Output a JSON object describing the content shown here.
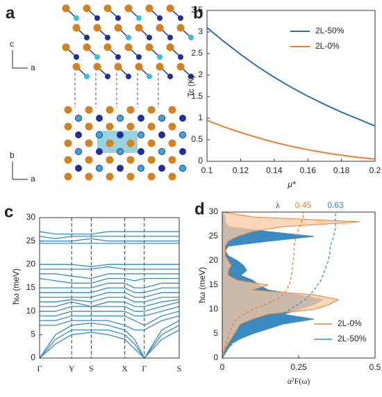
{
  "structure": {
    "panel_label": "a",
    "top_axes": [
      "c",
      "a"
    ],
    "bottom_axes": [
      "b",
      "a"
    ]
  },
  "chart_data": [
    {
      "type": "line",
      "panel_label": "b",
      "ylabel": "Tc (K)",
      "xlabel": "μ*",
      "x": [
        0.1,
        0.11,
        0.12,
        0.13,
        0.14,
        0.15,
        0.16,
        0.17,
        0.18,
        0.19,
        0.2
      ],
      "series": [
        {
          "name": "2L-50%",
          "color": "#2e6fa8",
          "values": [
            3.1,
            2.78,
            2.48,
            2.2,
            1.95,
            1.72,
            1.51,
            1.32,
            1.14,
            0.98,
            0.82
          ]
        },
        {
          "name": "2L-0%",
          "color": "#ed7d31",
          "values": [
            0.95,
            0.8,
            0.67,
            0.55,
            0.44,
            0.35,
            0.27,
            0.2,
            0.14,
            0.09,
            0.05
          ]
        }
      ],
      "xlim": [
        0.1,
        0.2
      ],
      "xticks": [
        0.1,
        0.12,
        0.14,
        0.16,
        0.18,
        0.2
      ],
      "ylim": [
        0,
        3.5
      ],
      "yticks": [
        0,
        0.5,
        1,
        1.5,
        2,
        2.5,
        3,
        3.5
      ],
      "legend": "upper right"
    },
    {
      "type": "bands",
      "panel_label": "c",
      "ylabel": "ħω (meV)",
      "color": "#3a8ac4",
      "x": [
        0,
        0.115,
        0.23,
        0.37,
        0.49,
        0.61,
        0.68,
        0.75,
        0.875,
        1.0
      ],
      "bands": [
        [
          0,
          3,
          5,
          5.5,
          5,
          4,
          2,
          0,
          4,
          6
        ],
        [
          0,
          4,
          6,
          6,
          6,
          5,
          3,
          0,
          5,
          7
        ],
        [
          0,
          5,
          7,
          7.5,
          7,
          6,
          4,
          0,
          6,
          8
        ],
        [
          7,
          7,
          8,
          8,
          8,
          7,
          6,
          6,
          8,
          9
        ],
        [
          8,
          8,
          9,
          9,
          9,
          9,
          8,
          7,
          9,
          10
        ],
        [
          9,
          9,
          10,
          10,
          10,
          10,
          9,
          9,
          10,
          11
        ],
        [
          10,
          10,
          11,
          11,
          11,
          11,
          10,
          10,
          11,
          12
        ],
        [
          11,
          11,
          12,
          11,
          12,
          12,
          11,
          11,
          12,
          12.5
        ],
        [
          12,
          12,
          12.5,
          12,
          13,
          13,
          12,
          12,
          13,
          13
        ],
        [
          13,
          13,
          13,
          13,
          14,
          14,
          13,
          13,
          14,
          14
        ],
        [
          14,
          14,
          14,
          14,
          15,
          15,
          14,
          14,
          15,
          15
        ],
        [
          15,
          15,
          15,
          15,
          16,
          16,
          15,
          15,
          16,
          16
        ],
        [
          17,
          16.5,
          16,
          16,
          17,
          17,
          16.5,
          17,
          17,
          17
        ],
        [
          18,
          18,
          17.5,
          17,
          18,
          18,
          18,
          18,
          18,
          18
        ],
        [
          19,
          19,
          19,
          19,
          19.5,
          19,
          19,
          19,
          19,
          19
        ],
        [
          20,
          20,
          20,
          19.5,
          20,
          20,
          20,
          20,
          20,
          20
        ],
        [
          24.5,
          24.5,
          24.5,
          24.5,
          24.5,
          24.5,
          24.5,
          24.5,
          24.5,
          24.5
        ],
        [
          25,
          25,
          25,
          25.5,
          25,
          25,
          25,
          25,
          25,
          25
        ],
        [
          26,
          25.5,
          26,
          26,
          26,
          26,
          26,
          26,
          26,
          26
        ],
        [
          27,
          26.5,
          26.5,
          26.5,
          27,
          27,
          27,
          27,
          27,
          27
        ]
      ],
      "xlim": [
        0,
        1
      ],
      "xticks": [
        {
          "value": 0,
          "label": "Γ"
        },
        {
          "value": 0.23,
          "label": "Y"
        },
        {
          "value": 0.37,
          "label": "S"
        },
        {
          "value": 0.61,
          "label": "X"
        },
        {
          "value": 0.75,
          "label": "Γ"
        },
        {
          "value": 1.0,
          "label": "S"
        }
      ],
      "ylim": [
        0,
        30
      ],
      "yticks": [
        0,
        5,
        10,
        15,
        20,
        25,
        30
      ]
    },
    {
      "type": "spectral",
      "panel_label": "d",
      "ylabel": "ħω (meV)",
      "xlabel": "α²F(ω)",
      "y": [
        0,
        1,
        2,
        3,
        4,
        5,
        6,
        7,
        8,
        9,
        10,
        11,
        12,
        13,
        14,
        15,
        16,
        17,
        18,
        19,
        20,
        21,
        22,
        23,
        24,
        25,
        26,
        27,
        28,
        29,
        30
      ],
      "series": [
        {
          "name": "2L-0%",
          "color": "#ed7d31",
          "fill": "#f9c9a0",
          "values": [
            0,
            0.005,
            0.01,
            0.02,
            0.03,
            0.04,
            0.05,
            0.06,
            0.1,
            0.15,
            0.3,
            0.35,
            0.38,
            0.3,
            0.1,
            0.15,
            0.05,
            0.02,
            0.02,
            0.03,
            0.02,
            0.01,
            0.01,
            0.01,
            0.02,
            0.05,
            0.1,
            0.2,
            0.45,
            0.1,
            0
          ]
        },
        {
          "name": "2L-50%",
          "color": "#3a8ac4",
          "fill": "#3a8ac4",
          "values": [
            0,
            0.01,
            0.02,
            0.03,
            0.06,
            0.1,
            0.15,
            0.2,
            0.3,
            0.2,
            0.25,
            0.3,
            0.33,
            0.25,
            0.15,
            0.12,
            0.1,
            0.06,
            0.08,
            0.07,
            0.05,
            0.02,
            0.01,
            0.02,
            0.15,
            0.3,
            0.15,
            0.02,
            0.01,
            0.01,
            0
          ]
        }
      ],
      "lambda": {
        "label": "λ",
        "xlim": [
          0,
          0.85
        ],
        "series": [
          {
            "color": "#ed7d31",
            "values": [
              0,
              0.005,
              0.01,
              0.02,
              0.03,
              0.04,
              0.05,
              0.06,
              0.08,
              0.12,
              0.17,
              0.24,
              0.3,
              0.34,
              0.36,
              0.37,
              0.38,
              0.385,
              0.39,
              0.39,
              0.395,
              0.4,
              0.4,
              0.4,
              0.405,
              0.41,
              0.42,
              0.43,
              0.44,
              0.45,
              0.45
            ]
          },
          {
            "color": "#3a8ac4",
            "values": [
              0,
              0.01,
              0.03,
              0.06,
              0.09,
              0.13,
              0.17,
              0.22,
              0.28,
              0.33,
              0.38,
              0.42,
              0.46,
              0.49,
              0.51,
              0.53,
              0.55,
              0.56,
              0.57,
              0.58,
              0.59,
              0.595,
              0.6,
              0.6,
              0.61,
              0.62,
              0.625,
              0.63,
              0.63,
              0.63,
              0.63
            ]
          }
        ]
      },
      "xlim": [
        0,
        0.5
      ],
      "xticks": [
        0,
        0.25,
        0.5
      ],
      "ylim": [
        0,
        30
      ],
      "yticks": [
        0,
        5,
        10,
        15,
        20,
        25,
        30
      ],
      "legend": "lower right"
    }
  ]
}
